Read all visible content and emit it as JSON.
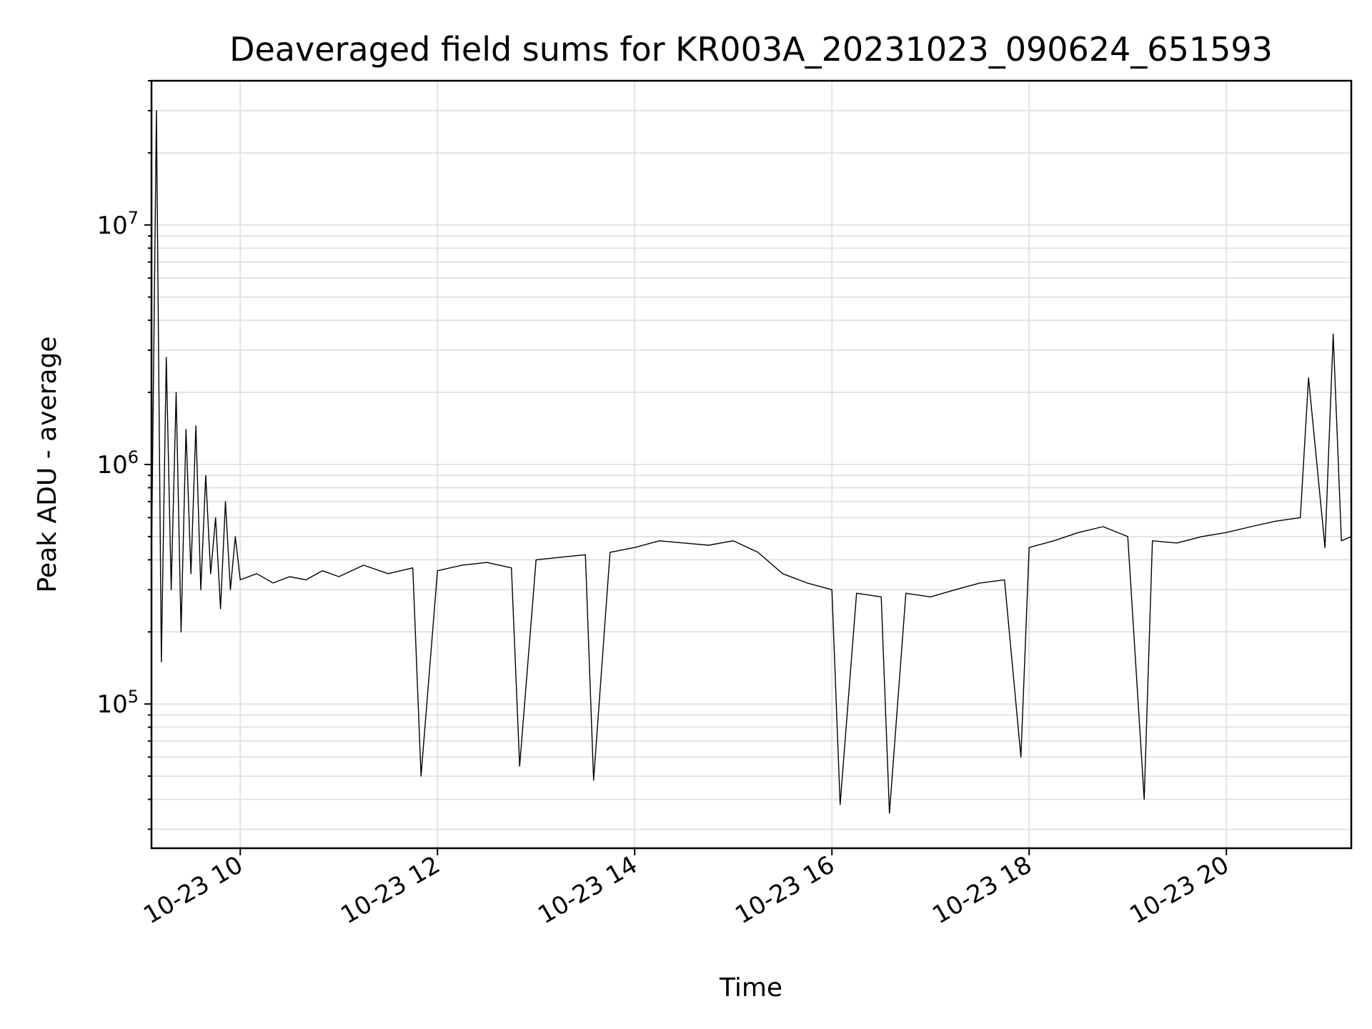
{
  "chart_data": {
    "type": "line",
    "title": "Deaveraged field sums for KR003A_20231023_090624_651593",
    "xlabel": "Time",
    "ylabel": "Peak ADU - average",
    "yscale": "log",
    "ylim": [
      25000,
      40000000
    ],
    "xlim": [
      "2023-10-23 09:06",
      "2023-10-23 21:16"
    ],
    "grid": true,
    "line_color": "#000000",
    "x_ticks": [
      {
        "value": "2023-10-23 10:00",
        "label": "10-23 10"
      },
      {
        "value": "2023-10-23 12:00",
        "label": "10-23 12"
      },
      {
        "value": "2023-10-23 14:00",
        "label": "10-23 14"
      },
      {
        "value": "2023-10-23 16:00",
        "label": "10-23 16"
      },
      {
        "value": "2023-10-23 18:00",
        "label": "10-23 18"
      },
      {
        "value": "2023-10-23 20:00",
        "label": "10-23 20"
      }
    ],
    "y_ticks": [
      {
        "value": 100000,
        "base": "10",
        "exp": "5"
      },
      {
        "value": 1000000,
        "base": "10",
        "exp": "6"
      },
      {
        "value": 10000000,
        "base": "10",
        "exp": "7"
      }
    ],
    "series": [
      {
        "x": [
          "2023-10-23 09:06",
          "2023-10-23 09:09",
          "2023-10-23 09:12",
          "2023-10-23 09:15",
          "2023-10-23 09:18",
          "2023-10-23 09:21",
          "2023-10-23 09:24",
          "2023-10-23 09:27",
          "2023-10-23 09:30",
          "2023-10-23 09:33",
          "2023-10-23 09:36",
          "2023-10-23 09:39",
          "2023-10-23 09:42",
          "2023-10-23 09:45",
          "2023-10-23 09:48",
          "2023-10-23 09:51",
          "2023-10-23 09:54",
          "2023-10-23 09:57",
          "2023-10-23 10:00",
          "2023-10-23 10:10",
          "2023-10-23 10:20",
          "2023-10-23 10:30",
          "2023-10-23 10:40",
          "2023-10-23 10:50",
          "2023-10-23 11:00",
          "2023-10-23 11:15",
          "2023-10-23 11:30",
          "2023-10-23 11:45",
          "2023-10-23 11:50",
          "2023-10-23 12:00",
          "2023-10-23 12:15",
          "2023-10-23 12:30",
          "2023-10-23 12:45",
          "2023-10-23 12:50",
          "2023-10-23 13:00",
          "2023-10-23 13:15",
          "2023-10-23 13:30",
          "2023-10-23 13:35",
          "2023-10-23 13:45",
          "2023-10-23 14:00",
          "2023-10-23 14:15",
          "2023-10-23 14:30",
          "2023-10-23 14:45",
          "2023-10-23 15:00",
          "2023-10-23 15:15",
          "2023-10-23 15:30",
          "2023-10-23 15:45",
          "2023-10-23 16:00",
          "2023-10-23 16:05",
          "2023-10-23 16:15",
          "2023-10-23 16:30",
          "2023-10-23 16:35",
          "2023-10-23 16:45",
          "2023-10-23 17:00",
          "2023-10-23 17:15",
          "2023-10-23 17:30",
          "2023-10-23 17:45",
          "2023-10-23 17:55",
          "2023-10-23 18:00",
          "2023-10-23 18:15",
          "2023-10-23 18:30",
          "2023-10-23 18:45",
          "2023-10-23 19:00",
          "2023-10-23 19:10",
          "2023-10-23 19:15",
          "2023-10-23 19:30",
          "2023-10-23 19:45",
          "2023-10-23 20:00",
          "2023-10-23 20:15",
          "2023-10-23 20:30",
          "2023-10-23 20:45",
          "2023-10-23 20:50",
          "2023-10-23 21:00",
          "2023-10-23 21:05",
          "2023-10-23 21:10",
          "2023-10-23 21:16"
        ],
        "values": [
          400000,
          30000000,
          150000,
          2800000,
          300000,
          2000000,
          200000,
          1400000,
          350000,
          1450000,
          300000,
          900000,
          350000,
          600000,
          250000,
          700000,
          300000,
          500000,
          330000,
          350000,
          320000,
          340000,
          330000,
          360000,
          340000,
          380000,
          350000,
          370000,
          50000,
          360000,
          380000,
          390000,
          370000,
          55000,
          400000,
          410000,
          420000,
          48000,
          430000,
          450000,
          480000,
          470000,
          460000,
          480000,
          430000,
          350000,
          320000,
          300000,
          38000,
          290000,
          280000,
          35000,
          290000,
          280000,
          300000,
          320000,
          330000,
          60000,
          450000,
          480000,
          520000,
          550000,
          500000,
          40000,
          480000,
          470000,
          500000,
          520000,
          550000,
          580000,
          600000,
          2300000,
          450000,
          3500000,
          480000,
          500000
        ]
      }
    ]
  }
}
